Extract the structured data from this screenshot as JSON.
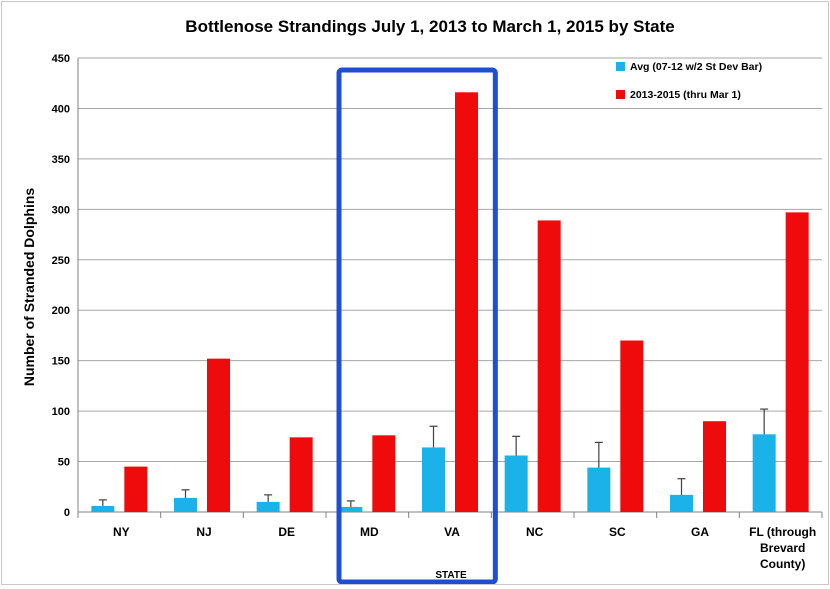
{
  "chart_data": {
    "type": "bar",
    "title": "Bottlenose Strandings July 1, 2013 to March 1, 2015 by State",
    "ylabel": "Number of Stranded Dolphins",
    "xlabel": "STATE",
    "ylim": [
      0,
      450
    ],
    "yticks": [
      0,
      50,
      100,
      150,
      200,
      250,
      300,
      350,
      400,
      450
    ],
    "grid": true,
    "legend_position": "top-right",
    "categories": [
      [
        "NY"
      ],
      [
        "NJ"
      ],
      [
        "DE"
      ],
      [
        "MD"
      ],
      [
        "VA"
      ],
      [
        "NC"
      ],
      [
        "SC"
      ],
      [
        "GA"
      ],
      [
        "FL (through",
        "Brevard",
        "County)"
      ]
    ],
    "series": [
      {
        "name": "Avg (07-12 w/2 St Dev Bar)",
        "color": "#1ab2e8",
        "values": [
          6,
          14,
          10,
          5,
          64,
          56,
          44,
          17,
          77
        ],
        "error_upper": [
          12,
          22,
          17,
          11,
          85,
          75,
          69,
          33,
          102
        ]
      },
      {
        "name": "2013-2015 (thru Mar 1)",
        "color": "#ef0b0b",
        "values": [
          45,
          152,
          74,
          76,
          416,
          289,
          170,
          90,
          297
        ]
      }
    ],
    "highlight": {
      "categories": [
        "MD",
        "VA"
      ],
      "color": "#1f4fd1"
    }
  }
}
